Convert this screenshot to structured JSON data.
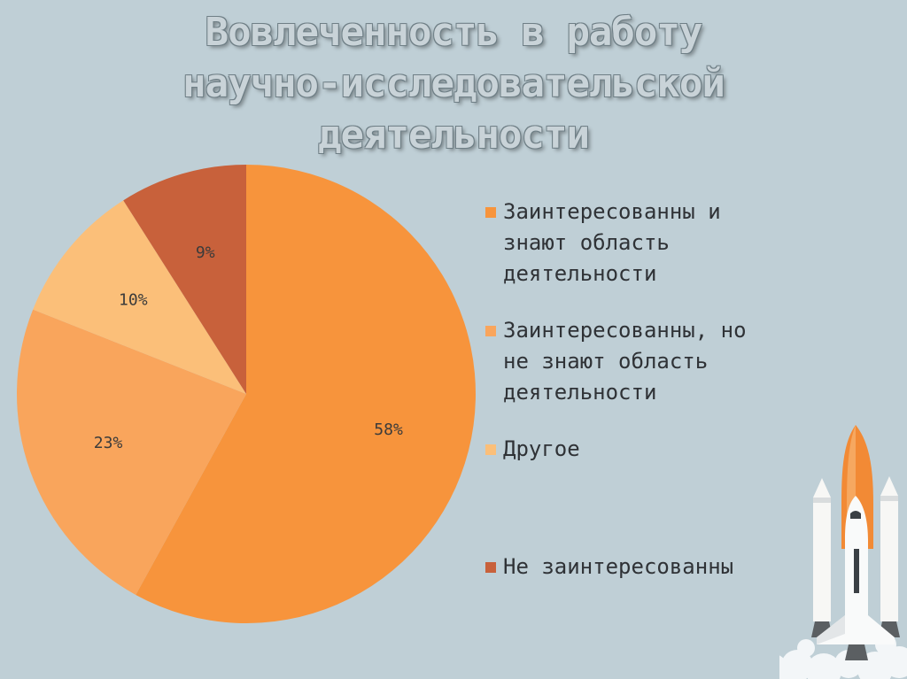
{
  "title_lines": [
    "Вовлеченность в работу",
    "научно-исследовательской",
    "деятельности"
  ],
  "chart_data": {
    "type": "pie",
    "title": "Вовлеченность в работу научно-исследовательской деятельности",
    "slices": [
      {
        "label": "Заинтересованны и знают область деятельности",
        "value": 58,
        "display": "58%",
        "color": "#f7943c"
      },
      {
        "label": "Заинтересованны, но не знают область деятельности",
        "value": 23,
        "display": "23%",
        "color": "#f9a55c"
      },
      {
        "label": "Другое",
        "value": 10,
        "display": "10%",
        "color": "#fbbf79"
      },
      {
        "label": "Не заинтересованны",
        "value": 9,
        "display": "9%",
        "color": "#c8613b"
      }
    ],
    "legend_position": "right",
    "start_angle_deg": 0,
    "direction": "clockwise"
  },
  "legend": [
    {
      "text": "Заинтересованны и\nзнают область\nдеятельности",
      "color": "#f7943c"
    },
    {
      "text": "Заинтересованны, но\nне знают область\nдеятельности",
      "color": "#f9a55c"
    },
    {
      "text": "Другое",
      "color": "#fbbf79"
    },
    {
      "text": "Не заинтересованны",
      "color": "#c8613b"
    }
  ]
}
